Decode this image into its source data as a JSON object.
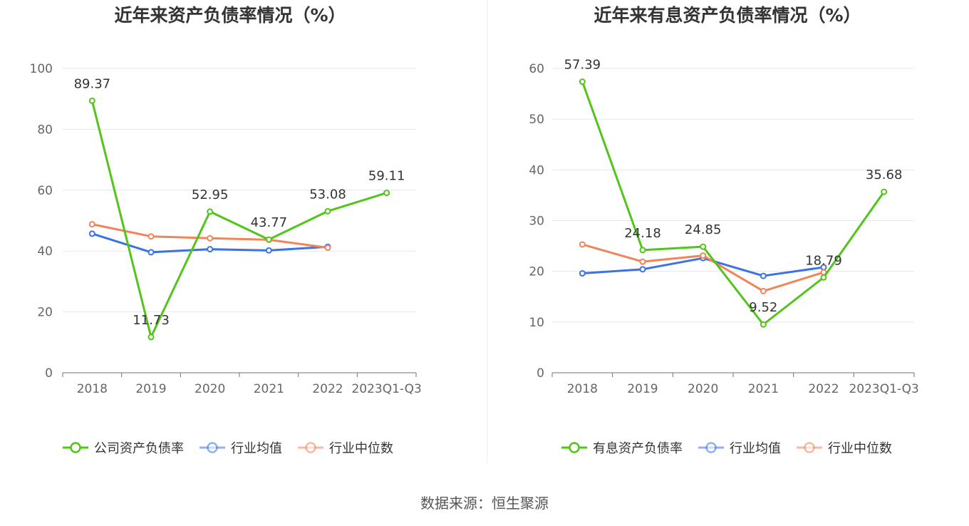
{
  "source_text": "数据来源：恒生聚源",
  "chart_data": [
    {
      "type": "line",
      "title": "近年来资产负债率情况（%）",
      "categories": [
        "2018",
        "2019",
        "2020",
        "2021",
        "2022",
        "2023Q1-Q3"
      ],
      "ylim": [
        0,
        100
      ],
      "yticks": [
        0,
        20,
        40,
        60,
        80,
        100
      ],
      "grid": true,
      "legend_position": "bottom",
      "series": [
        {
          "name": "公司资产负债率",
          "color": "#52c41a",
          "values": [
            89.37,
            11.73,
            52.95,
            43.77,
            53.08,
            59.11
          ],
          "labels": [
            "89.37",
            "11.73",
            "52.95",
            "43.77",
            "53.08",
            "59.11"
          ]
        },
        {
          "name": "行业均值",
          "color": "#3b73e0",
          "values": [
            45.7,
            39.6,
            40.6,
            40.2,
            41.4,
            null
          ]
        },
        {
          "name": "行业中位数",
          "color": "#f0845a",
          "values": [
            48.8,
            44.8,
            44.2,
            43.7,
            41.1,
            null
          ]
        }
      ]
    },
    {
      "type": "line",
      "title": "近年来有息资产负债率情况（%）",
      "categories": [
        "2018",
        "2019",
        "2020",
        "2021",
        "2022",
        "2023Q1-Q3"
      ],
      "ylim": [
        0,
        60
      ],
      "yticks": [
        0,
        10,
        20,
        30,
        40,
        50,
        60
      ],
      "grid": true,
      "legend_position": "bottom",
      "series": [
        {
          "name": "有息资产负债率",
          "color": "#52c41a",
          "values": [
            57.39,
            24.18,
            24.85,
            9.52,
            18.79,
            35.68
          ],
          "labels": [
            "57.39",
            "24.18",
            "24.85",
            "9.52",
            "18.79",
            "35.68"
          ]
        },
        {
          "name": "行业均值",
          "color": "#3b73e0",
          "values": [
            19.6,
            20.4,
            22.6,
            19.1,
            20.8,
            null
          ]
        },
        {
          "name": "行业中位数",
          "color": "#f0845a",
          "values": [
            25.3,
            21.9,
            23.1,
            16.1,
            19.8,
            null
          ]
        }
      ]
    }
  ]
}
